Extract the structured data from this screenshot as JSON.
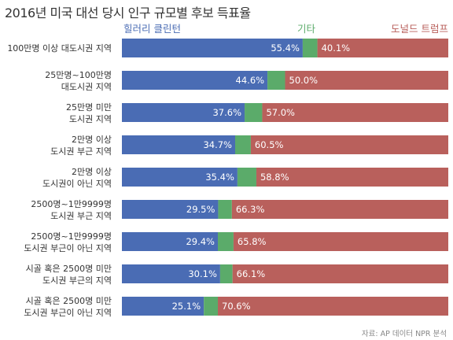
{
  "title": "2016년 미국 대선 당시 인구 규모별 후보 득표율",
  "legend": [
    {
      "name": "힐러리 클린턴",
      "color": "#4a6cb4"
    },
    {
      "name": "기타",
      "color": "#5bab6a"
    },
    {
      "name": "도널드 트럼프",
      "color": "#b9605c"
    }
  ],
  "source": "자료: AP 데이터 NPR 분석",
  "chart_data": {
    "type": "bar",
    "orientation": "horizontal",
    "stacked": true,
    "categories": [
      [
        "100만명 이상 대도시권 지역"
      ],
      [
        "25만명~100만명",
        "대도시권 지역"
      ],
      [
        "25만명 미만",
        "도시권 지역"
      ],
      [
        "2만명 이상",
        "도시권 부근 지역"
      ],
      [
        "2만명 이상",
        "도시권이 아닌 지역"
      ],
      [
        "2500명~1만9999명",
        "도시권 부근 지역"
      ],
      [
        "2500명~1만9999명",
        "도시권 부근이 아닌 지역"
      ],
      [
        "시골 혹은 2500명 미만",
        "도시권 부근의 지역"
      ],
      [
        "시골 혹은 2500명 미만",
        "도시권 부근이 아닌 지역"
      ]
    ],
    "series": [
      {
        "name": "힐러리 클린턴",
        "color": "#4a6cb4",
        "values": [
          55.4,
          44.6,
          37.6,
          34.7,
          35.4,
          29.5,
          29.4,
          30.1,
          25.1
        ],
        "labels": [
          "55.4%",
          "44.6%",
          "37.6%",
          "34.7%",
          "35.4%",
          "29.5%",
          "29.4%",
          "30.1%",
          "25.1%"
        ]
      },
      {
        "name": "기타",
        "color": "#5bab6a",
        "values": [
          4.5,
          5.4,
          5.4,
          4.8,
          5.8,
          4.2,
          4.8,
          3.8,
          4.3
        ],
        "labels": [
          "",
          "",
          "",
          "",
          "",
          "",
          "",
          "",
          ""
        ]
      },
      {
        "name": "도널드 트럼프",
        "color": "#b9605c",
        "values": [
          40.1,
          50.0,
          57.0,
          60.5,
          58.8,
          66.3,
          65.8,
          66.1,
          70.6
        ],
        "labels": [
          "40.1%",
          "50.0%",
          "57.0%",
          "60.5%",
          "58.8%",
          "66.3%",
          "65.8%",
          "66.1%",
          "70.6%"
        ]
      }
    ],
    "xlim": [
      0,
      100
    ],
    "grid": false,
    "legend_position": "top"
  }
}
